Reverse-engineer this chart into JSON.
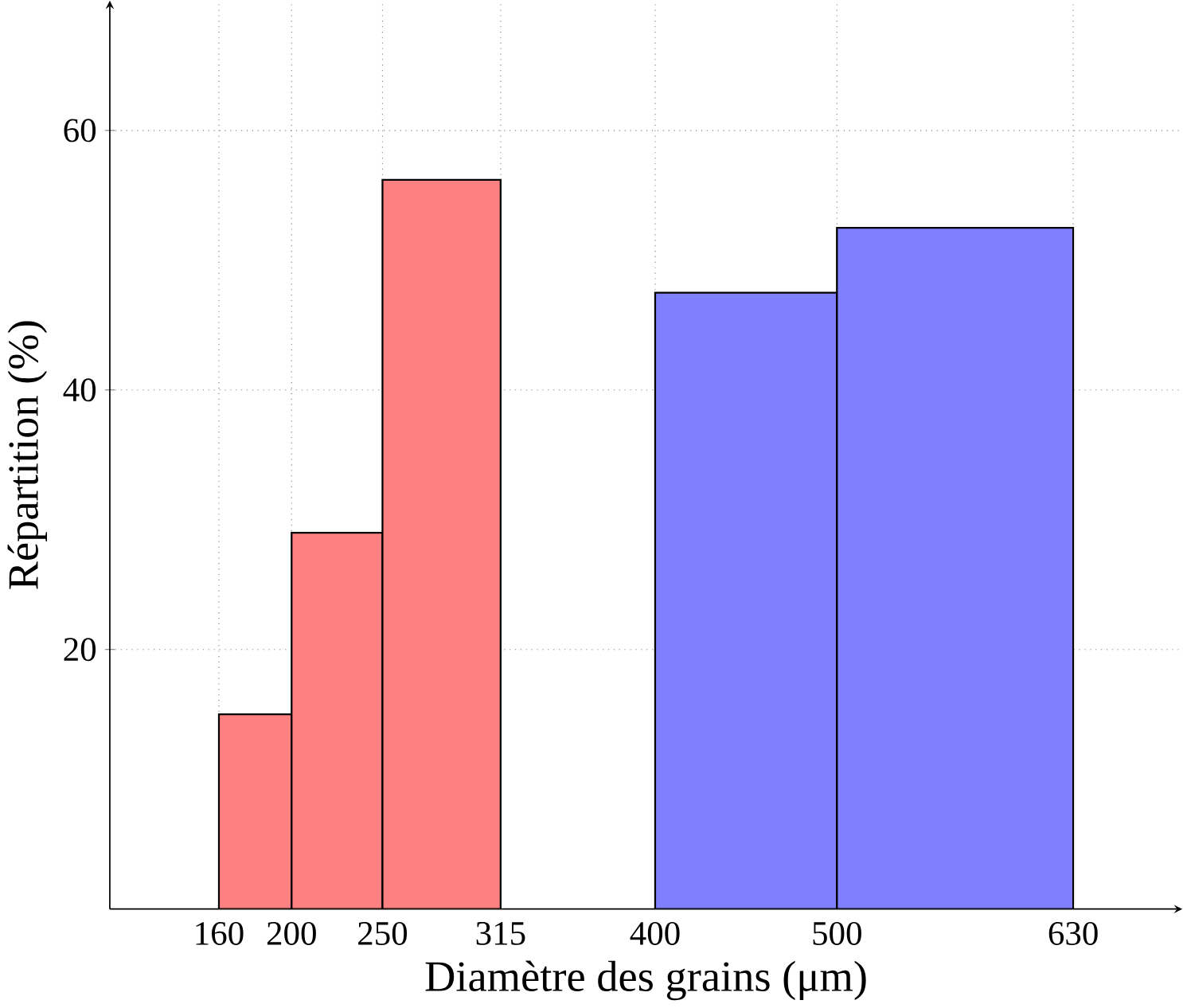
{
  "chart_data": {
    "type": "histogram",
    "xlabel": "Diamètre des grains (μm)",
    "ylabel": "Répartition (%)",
    "bins": [
      160,
      200,
      250,
      315,
      400,
      500,
      630
    ],
    "values": [
      15,
      29,
      56.2,
      null,
      47.5,
      52.5
    ],
    "colors": [
      "#ff8080",
      "#ff8080",
      "#ff8080",
      null,
      "#8080ff",
      "#8080ff"
    ],
    "xlim": [
      100,
      690
    ],
    "ylim": [
      0,
      70
    ],
    "xticks": [
      160,
      200,
      250,
      315,
      400,
      500,
      630
    ],
    "yticks": [
      20,
      40,
      60
    ],
    "grid": true
  }
}
